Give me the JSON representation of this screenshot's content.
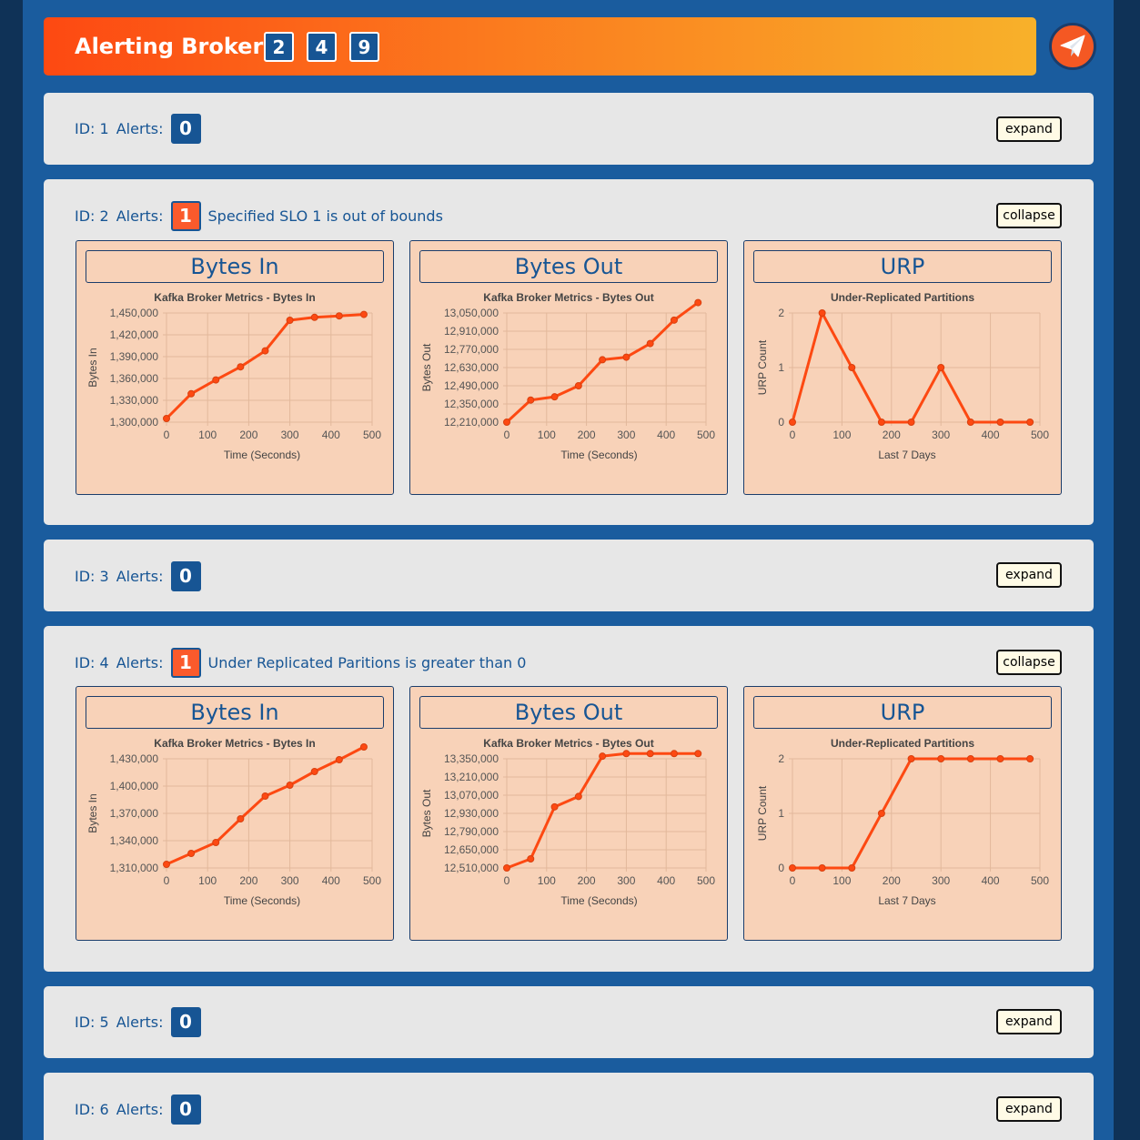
{
  "header": {
    "title": "Alerting Brokers:",
    "alerting_ids": [
      "2",
      "4",
      "9"
    ],
    "send_icon": "paper-plane-icon"
  },
  "colors": {
    "page_bg": "#0f3257",
    "main_bg": "#1a5c9e",
    "badge_blue": "#175594",
    "badge_alert": "#fb5a2c",
    "panel_bg": "#f8d2b8",
    "line": "#fd4912"
  },
  "brokers": [
    {
      "id_label": "ID: 1",
      "alerts_label": "Alerts:",
      "alert_count": "0",
      "message": "",
      "toggle": "expand"
    },
    {
      "id_label": "ID: 2",
      "alerts_label": "Alerts:",
      "alert_count": "1",
      "message": "Specified SLO 1 is out of bounds",
      "toggle": "collapse"
    },
    {
      "id_label": "ID: 3",
      "alerts_label": "Alerts:",
      "alert_count": "0",
      "message": "",
      "toggle": "expand"
    },
    {
      "id_label": "ID: 4",
      "alerts_label": "Alerts:",
      "alert_count": "1",
      "message": "Under Replicated Paritions is greater than 0",
      "toggle": "collapse"
    },
    {
      "id_label": "ID: 5",
      "alerts_label": "Alerts:",
      "alert_count": "0",
      "message": "",
      "toggle": "expand"
    },
    {
      "id_label": "ID: 6",
      "alerts_label": "Alerts:",
      "alert_count": "0",
      "message": "",
      "toggle": "expand"
    }
  ],
  "chart_data": [
    {
      "broker": "ID: 2",
      "panel": "Bytes In",
      "type": "line",
      "title": "Kafka Broker Metrics - Bytes In",
      "xlabel": "Time (Seconds)",
      "ylabel": "Bytes In",
      "x": [
        0,
        60,
        120,
        180,
        240,
        300,
        360,
        420,
        480
      ],
      "y": [
        1305000,
        1339000,
        1358000,
        1376000,
        1398000,
        1440000,
        1444000,
        1446000,
        1448000
      ],
      "xlim": [
        0,
        500
      ],
      "xticks": [
        0,
        100,
        200,
        300,
        400,
        500
      ],
      "ylim": [
        1300000,
        1450000
      ],
      "yticks": [
        1300000,
        1330000,
        1360000,
        1390000,
        1420000,
        1450000
      ],
      "grid": true
    },
    {
      "broker": "ID: 2",
      "panel": "Bytes Out",
      "type": "line",
      "title": "Kafka Broker Metrics - Bytes Out",
      "xlabel": "Time (Seconds)",
      "ylabel": "Bytes Out",
      "x": [
        0,
        60,
        120,
        180,
        240,
        300,
        360,
        420,
        480
      ],
      "y": [
        12210000,
        12380000,
        12405000,
        12490000,
        12690000,
        12710000,
        12815000,
        12995000,
        13130000
      ],
      "xlim": [
        0,
        500
      ],
      "xticks": [
        0,
        100,
        200,
        300,
        400,
        500
      ],
      "ylim": [
        12210000,
        13050000
      ],
      "yticks": [
        12210000,
        12350000,
        12490000,
        12630000,
        12770000,
        12910000,
        13050000
      ],
      "grid": true
    },
    {
      "broker": "ID: 2",
      "panel": "URP",
      "type": "line",
      "title": "Under-Replicated Partitions",
      "xlabel": "Last 7 Days",
      "ylabel": "URP Count",
      "x": [
        0,
        60,
        120,
        180,
        240,
        300,
        360,
        420,
        480
      ],
      "y": [
        0,
        2,
        1,
        0,
        0,
        1,
        0,
        0,
        0
      ],
      "xlim": [
        0,
        500
      ],
      "xticks": [
        0,
        100,
        200,
        300,
        400,
        500
      ],
      "ylim": [
        0,
        2
      ],
      "yticks": [
        0,
        1,
        2
      ],
      "grid": true
    },
    {
      "broker": "ID: 4",
      "panel": "Bytes In",
      "type": "line",
      "title": "Kafka Broker Metrics - Bytes In",
      "xlabel": "Time (Seconds)",
      "ylabel": "Bytes In",
      "x": [
        0,
        60,
        120,
        180,
        240,
        300,
        360,
        420,
        480
      ],
      "y": [
        1314000,
        1326000,
        1338000,
        1364000,
        1389000,
        1401000,
        1416000,
        1429000,
        1443000
      ],
      "xlim": [
        0,
        500
      ],
      "xticks": [
        0,
        100,
        200,
        300,
        400,
        500
      ],
      "ylim": [
        1310000,
        1430000
      ],
      "yticks": [
        1310000,
        1340000,
        1370000,
        1400000,
        1430000
      ],
      "grid": true
    },
    {
      "broker": "ID: 4",
      "panel": "Bytes Out",
      "type": "line",
      "title": "Kafka Broker Metrics - Bytes Out",
      "xlabel": "Time (Seconds)",
      "ylabel": "Bytes Out",
      "x": [
        0,
        60,
        120,
        180,
        240,
        300,
        360,
        420,
        480
      ],
      "y": [
        12510000,
        12580000,
        12980000,
        13060000,
        13370000,
        13390000,
        13390000,
        13390000,
        13390000
      ],
      "xlim": [
        0,
        500
      ],
      "xticks": [
        0,
        100,
        200,
        300,
        400,
        500
      ],
      "ylim": [
        12510000,
        13350000
      ],
      "yticks": [
        12510000,
        12650000,
        12790000,
        12930000,
        13070000,
        13210000,
        13350000
      ],
      "grid": true
    },
    {
      "broker": "ID: 4",
      "panel": "URP",
      "type": "line",
      "title": "Under-Replicated Partitions",
      "xlabel": "Last 7 Days",
      "ylabel": "URP Count",
      "x": [
        0,
        60,
        120,
        180,
        240,
        300,
        360,
        420,
        480
      ],
      "y": [
        0,
        0,
        0,
        1,
        2,
        2,
        2,
        2,
        2
      ],
      "xlim": [
        0,
        500
      ],
      "xticks": [
        0,
        100,
        200,
        300,
        400,
        500
      ],
      "ylim": [
        0,
        2
      ],
      "yticks": [
        0,
        1,
        2
      ],
      "grid": true
    }
  ]
}
